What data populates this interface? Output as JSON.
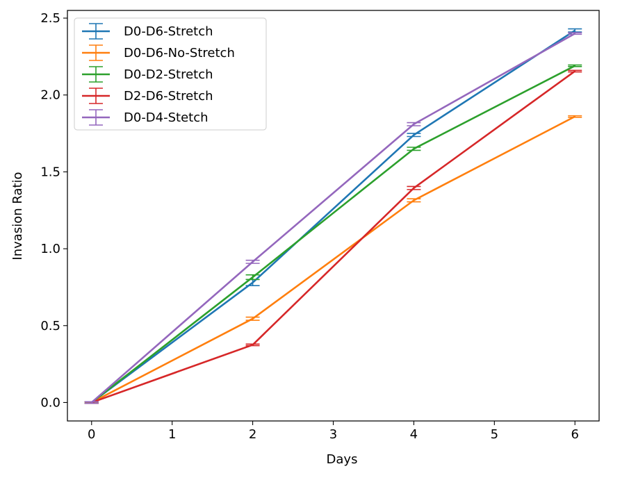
{
  "chart_data": {
    "type": "line",
    "xlabel": "Days",
    "ylabel": "Invasion Ratio",
    "xlim": [
      -0.3,
      6.3
    ],
    "ylim": [
      -0.12,
      2.55
    ],
    "xticks": [
      0,
      1,
      2,
      3,
      4,
      5,
      6
    ],
    "xtick_labels": [
      "0",
      "1",
      "2",
      "3",
      "4",
      "5",
      "6"
    ],
    "yticks": [
      0.0,
      0.5,
      1.0,
      1.5,
      2.0,
      2.5
    ],
    "ytick_labels": [
      "0.0",
      "0.5",
      "1.0",
      "1.5",
      "2.0",
      "2.5"
    ],
    "grid": false,
    "legend_position": "top-left",
    "x": [
      0,
      2,
      4,
      6
    ],
    "series": [
      {
        "name": "D0-D6-Stretch",
        "color": "#1f77b4",
        "values": [
          0.0,
          0.78,
          1.74,
          2.42
        ],
        "errors": [
          0.005,
          0.02,
          0.01,
          0.01
        ]
      },
      {
        "name": "D0-D6-No-Stretch",
        "color": "#ff7f0e",
        "values": [
          0.0,
          0.545,
          1.315,
          1.86
        ],
        "errors": [
          0.005,
          0.01,
          0.01,
          0.005
        ]
      },
      {
        "name": "D0-D2-Stretch",
        "color": "#2ca02c",
        "values": [
          0.0,
          0.815,
          1.65,
          2.19
        ],
        "errors": [
          0.005,
          0.015,
          0.01,
          0.005
        ]
      },
      {
        "name": "D2-D6-Stretch",
        "color": "#d62728",
        "values": [
          0.0,
          0.375,
          1.395,
          2.155
        ],
        "errors": [
          0.005,
          0.005,
          0.01,
          0.005
        ]
      },
      {
        "name": "D0-D4-Stetch",
        "color": "#9467bd",
        "values": [
          0.0,
          0.915,
          1.81,
          2.4
        ],
        "errors": [
          0.005,
          0.01,
          0.01,
          0.005
        ]
      }
    ]
  }
}
